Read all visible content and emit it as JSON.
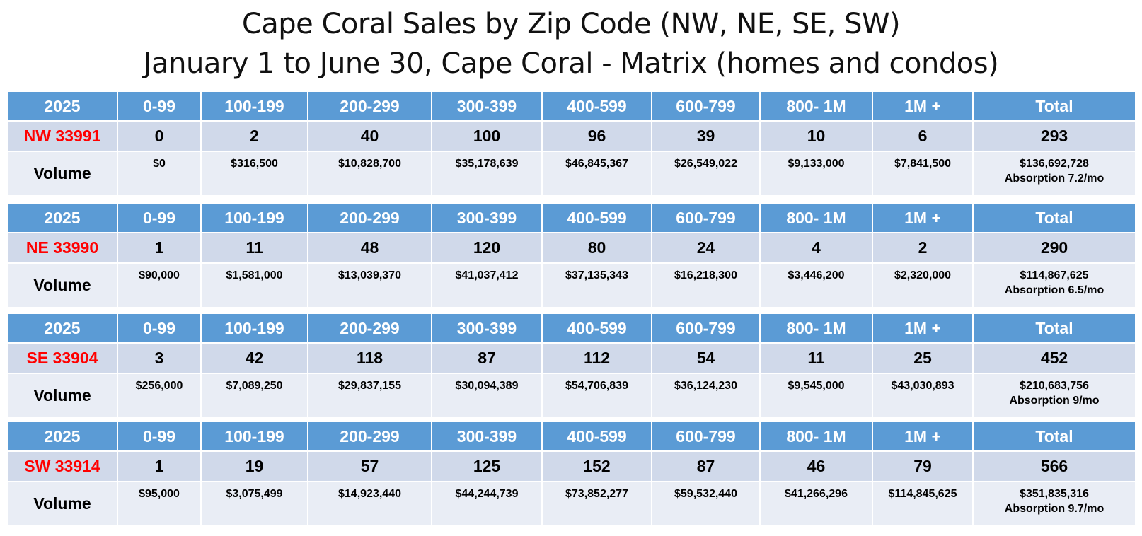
{
  "title": {
    "line1": "Cape Coral Sales by Zip Code (NW, NE, SE, SW)",
    "line2": "January 1 to June 30, Cape Coral - Matrix (homes and condos)"
  },
  "colors": {
    "header_bg": "#5b9bd5",
    "count_bg": "#d0d9ea",
    "volume_bg": "#e9edf5",
    "zip_text": "#ff0000"
  },
  "tables": [
    {
      "header": [
        "2025",
        "0-99",
        "100-199",
        "200-299",
        "300-399",
        "400-599",
        "600-799",
        "800- 1M",
        "1M +",
        "Total"
      ],
      "zip": "NW 33991",
      "counts": [
        "0",
        "2",
        "40",
        "100",
        "96",
        "39",
        "10",
        "6",
        "293"
      ],
      "volume_label": "Volume",
      "volumes": [
        "$0",
        "$316,500",
        "$10,828,700",
        "$35,178,639",
        "$46,845,367",
        "$26,549,022",
        "$9,133,000",
        "$7,841,500",
        "$136,692,728"
      ],
      "absorption": "Absorption 7.2/mo"
    },
    {
      "header": [
        "2025",
        "0-99",
        "100-199",
        "200-299",
        "300-399",
        "400-599",
        "600-799",
        "800- 1M",
        "1M +",
        "Total"
      ],
      "zip": "NE 33990",
      "counts": [
        "1",
        "11",
        "48",
        "120",
        "80",
        "24",
        "4",
        "2",
        "290"
      ],
      "volume_label": "Volume",
      "volumes": [
        "$90,000",
        "$1,581,000",
        "$13,039,370",
        "$41,037,412",
        "$37,135,343",
        "$16,218,300",
        "$3,446,200",
        "$2,320,000",
        "$114,867,625"
      ],
      "absorption": "Absorption 6.5/mo"
    },
    {
      "header": [
        "2025",
        "0-99",
        "100-199",
        "200-299",
        "300-399",
        "400-599",
        "600-799",
        "800- 1M",
        "1M +",
        "Total"
      ],
      "zip": "SE 33904",
      "counts": [
        "3",
        "42",
        "118",
        "87",
        "112",
        "54",
        "11",
        "25",
        "452"
      ],
      "volume_label": "Volume",
      "volumes": [
        "$256,000",
        "$7,089,250",
        "$29,837,155",
        "$30,094,389",
        "$54,706,839",
        "$36,124,230",
        "$9,545,000",
        "$43,030,893",
        "$210,683,756"
      ],
      "absorption": "Absorption 9/mo"
    },
    {
      "header": [
        "2025",
        "0-99",
        "100-199",
        "200-299",
        "300-399",
        "400-599",
        "600-799",
        "800- 1M",
        "1M +",
        "Total"
      ],
      "zip": "SW 33914",
      "counts": [
        "1",
        "19",
        "57",
        "125",
        "152",
        "87",
        "46",
        "79",
        "566"
      ],
      "volume_label": "Volume",
      "volumes": [
        "$95,000",
        "$3,075,499",
        "$14,923,440",
        "$44,244,739",
        "$73,852,277",
        "$59,532,440",
        "$41,266,296",
        "$114,845,625",
        "$351,835,316"
      ],
      "absorption": "Absorption 9.7/mo"
    }
  ]
}
